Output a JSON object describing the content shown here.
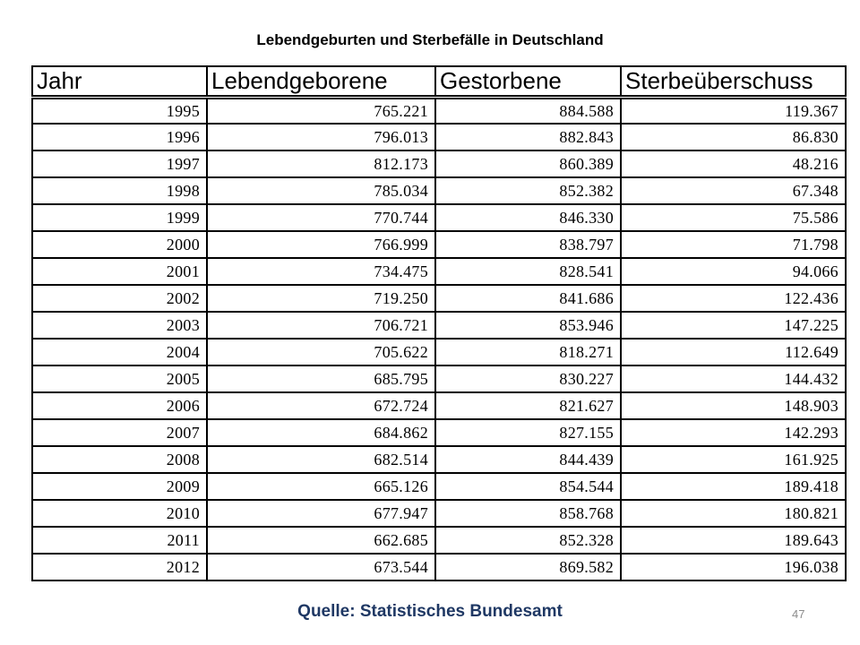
{
  "title": "Lebendgeburten und Sterbefälle in Deutschland",
  "table": {
    "headers": [
      "Jahr",
      "Lebendgeborene",
      "Gestorbene",
      "Sterbeüberschuss"
    ],
    "rows": [
      [
        "1995",
        "765.221",
        "884.588",
        "119.367"
      ],
      [
        "1996",
        "796.013",
        "882.843",
        "86.830"
      ],
      [
        "1997",
        "812.173",
        "860.389",
        "48.216"
      ],
      [
        "1998",
        "785.034",
        "852.382",
        "67.348"
      ],
      [
        "1999",
        "770.744",
        "846.330",
        "75.586"
      ],
      [
        "2000",
        "766.999",
        "838.797",
        "71.798"
      ],
      [
        "2001",
        "734.475",
        "828.541",
        "94.066"
      ],
      [
        "2002",
        "719.250",
        "841.686",
        "122.436"
      ],
      [
        "2003",
        "706.721",
        "853.946",
        "147.225"
      ],
      [
        "2004",
        "705.622",
        "818.271",
        "112.649"
      ],
      [
        "2005",
        "685.795",
        "830.227",
        "144.432"
      ],
      [
        "2006",
        "672.724",
        "821.627",
        "148.903"
      ],
      [
        "2007",
        "684.862",
        "827.155",
        "142.293"
      ],
      [
        "2008",
        "682.514",
        "844.439",
        "161.925"
      ],
      [
        "2009",
        "665.126",
        "854.544",
        "189.418"
      ],
      [
        "2010",
        "677.947",
        "858.768",
        "180.821"
      ],
      [
        "2011",
        "662.685",
        "852.328",
        "189.643"
      ],
      [
        "2012",
        "673.544",
        "869.582",
        "196.038"
      ]
    ]
  },
  "source": "Quelle: Statistisches Bundesamt",
  "page_number": "47",
  "colors": {
    "text": "#000000",
    "source": "#1F3864",
    "page_number": "#8C8C8C"
  }
}
